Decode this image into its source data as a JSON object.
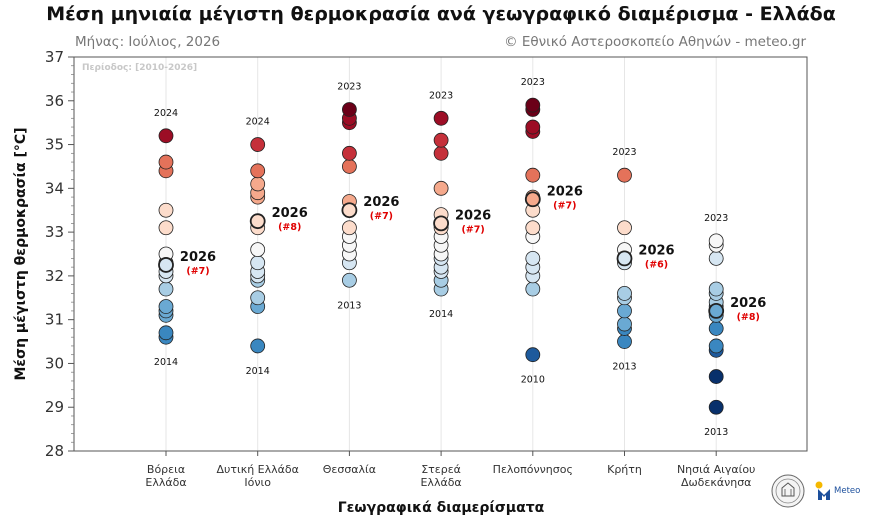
{
  "header": {
    "title": "Μέση μηνιαία μέγιστη θερμοκρασία ανά γεωγραφικό διαμέρισμα - Ελλάδα",
    "month_label": "Μήνας: Ιούλιος, 2026",
    "copyright": "© Εθνικό Αστεροσκοπείο Αθηνών - meteo.gr",
    "period": "Περίοδος: [2010-2026]"
  },
  "logo": {
    "text": "Meteo"
  },
  "chart_data": {
    "type": "scatter",
    "title": "Μέση μηνιαία μέγιστη θερμοκρασία ανά γεωγραφικό διαμέρισμα - Ελλάδα",
    "xlabel": "Γεωγραφικά διαμερίσματα",
    "ylabel": "Μέση μέγιστη θερμοκρασία [°C]",
    "ylim": [
      28,
      37
    ],
    "yticks": [
      28,
      29,
      30,
      31,
      32,
      33,
      34,
      35,
      36,
      37
    ],
    "grid": "vertical",
    "colors": [
      "#08306b",
      "#1e5a9c",
      "#3a87c0",
      "#6aa9d3",
      "#a8cde4",
      "#d6e6f2",
      "#f7f7f7",
      "#fcdccb",
      "#f5a98c",
      "#e4725a",
      "#c5303a",
      "#9c0d25",
      "#6b0018"
    ],
    "categories": [
      {
        "label": [
          "Βόρεια",
          "Ελλάδα"
        ],
        "values": [
          30.6,
          30.7,
          31.1,
          31.2,
          31.3,
          31.7,
          32.0,
          32.1,
          32.3,
          32.5,
          33.1,
          33.5,
          34.4,
          34.6,
          35.2
        ],
        "current": {
          "value": 32.25,
          "year": "2026",
          "rank": "(#7)"
        },
        "max_label": "2024",
        "min_label": "2014"
      },
      {
        "label": [
          "Δυτική Ελλάδα",
          "Ιόνιο"
        ],
        "values": [
          30.4,
          31.3,
          31.5,
          31.9,
          32.0,
          32.1,
          32.3,
          32.6,
          33.1,
          33.8,
          33.9,
          34.1,
          34.4,
          35.0
        ],
        "current": {
          "value": 33.25,
          "year": "2026",
          "rank": "(#8)"
        },
        "max_label": "2024",
        "min_label": "2014"
      },
      {
        "label": [
          "Θεσσαλία"
        ],
        "values": [
          31.9,
          32.3,
          32.5,
          32.7,
          32.9,
          33.1,
          33.5,
          33.7,
          34.5,
          34.8,
          35.5,
          35.6,
          35.8
        ],
        "current": {
          "value": 33.5,
          "year": "2026",
          "rank": "(#7)"
        },
        "max_label": "2023",
        "min_label": "2013"
      },
      {
        "label": [
          "Στερεά",
          "Ελλάδα"
        ],
        "values": [
          31.7,
          31.9,
          32.1,
          32.2,
          32.4,
          32.5,
          32.7,
          32.9,
          33.1,
          33.4,
          34.0,
          34.8,
          35.1,
          35.6
        ],
        "current": {
          "value": 33.2,
          "year": "2026",
          "rank": "(#7)"
        },
        "max_label": "2023",
        "min_label": "2014"
      },
      {
        "label": [
          "Πελοπόννησος"
        ],
        "values": [
          30.2,
          31.7,
          32.0,
          32.2,
          32.4,
          32.9,
          33.1,
          33.5,
          33.8,
          34.3,
          35.3,
          35.4,
          35.8,
          35.9
        ],
        "current": {
          "value": 33.75,
          "year": "2026",
          "rank": "(#7)"
        },
        "max_label": "2023",
        "min_label": "2010"
      },
      {
        "label": [
          "Κρήτη"
        ],
        "values": [
          30.5,
          30.8,
          30.9,
          31.2,
          31.5,
          31.6,
          32.3,
          32.4,
          32.6,
          33.1,
          34.3
        ],
        "current": {
          "value": 32.4,
          "year": "2026",
          "rank": "(#6)"
        },
        "max_label": "2023",
        "min_label": "2013"
      },
      {
        "label": [
          "Νησιά Αιγαίου",
          "Δωδεκάνησα"
        ],
        "values": [
          29.0,
          29.7,
          30.3,
          30.4,
          30.8,
          31.1,
          31.3,
          31.4,
          31.6,
          31.7,
          32.4,
          32.7,
          32.8
        ],
        "current": {
          "value": 31.2,
          "year": "2026",
          "rank": "(#8)"
        },
        "max_label": "2023",
        "min_label": "2013"
      }
    ]
  }
}
